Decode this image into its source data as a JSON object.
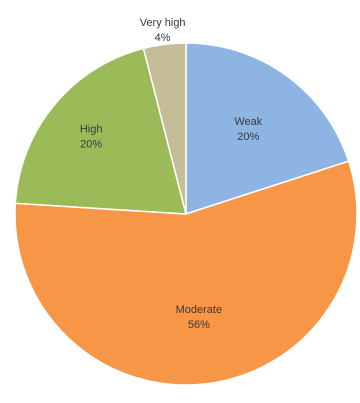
{
  "chart_data": {
    "type": "pie",
    "title": "",
    "start": "12 o'clock",
    "direction": "clockwise",
    "legend": "none",
    "slices": [
      {
        "label": "Weak",
        "value": 20,
        "value_label": "20%",
        "color": "#8EB4E3"
      },
      {
        "label": "Moderate",
        "value": 56,
        "value_label": "56%",
        "color": "#F79646"
      },
      {
        "label": "High",
        "value": 20,
        "value_label": "20%",
        "color": "#9BBB59"
      },
      {
        "label": "Very high",
        "value": 4,
        "value_label": "4%",
        "color": "#C4BD97"
      }
    ]
  }
}
